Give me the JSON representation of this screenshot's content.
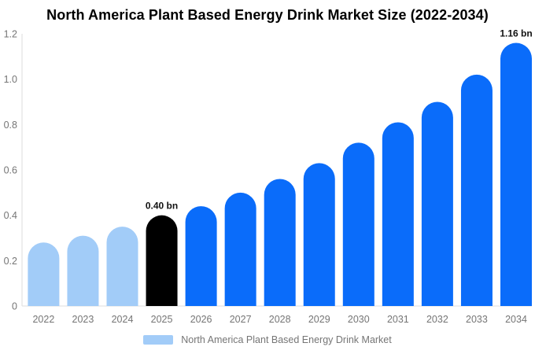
{
  "title": "North America Plant Based Energy Drink Market Size (2022-2034)",
  "legend": {
    "label": "North America Plant Based Energy Drink Market",
    "swatch_color": "#a2ccf8"
  },
  "colors": {
    "historical_bar": "#a2ccf8",
    "highlight_bar": "#000000",
    "forecast_bar": "#0a6cfa",
    "axis_line": "#dedede",
    "tick_text": "#757575",
    "annotation_text": "#111111",
    "background": "#ffffff"
  },
  "chart_data": {
    "type": "bar",
    "title": "North America Plant Based Energy Drink Market Size (2022-2034)",
    "categories": [
      "2022",
      "2023",
      "2024",
      "2025",
      "2026",
      "2027",
      "2028",
      "2029",
      "2030",
      "2031",
      "2032",
      "2033",
      "2034"
    ],
    "values": [
      0.28,
      0.31,
      0.35,
      0.4,
      0.44,
      0.5,
      0.56,
      0.63,
      0.72,
      0.81,
      0.9,
      1.02,
      1.16
    ],
    "unit": "bn",
    "bar_colors": [
      "#a2ccf8",
      "#a2ccf8",
      "#a2ccf8",
      "#000000",
      "#0a6cfa",
      "#0a6cfa",
      "#0a6cfa",
      "#0a6cfa",
      "#0a6cfa",
      "#0a6cfa",
      "#0a6cfa",
      "#0a6cfa",
      "#0a6cfa"
    ],
    "annotations": [
      {
        "index": 3,
        "label": "0.40 bn"
      },
      {
        "index": 12,
        "label": "1.16 bn"
      }
    ],
    "xlabel": "",
    "ylabel": "",
    "ylim": [
      0,
      1.2
    ],
    "yticks": [
      0,
      0.2,
      0.4,
      0.6,
      0.8,
      1.0,
      1.2
    ],
    "ytick_labels": [
      "0",
      "0.2",
      "0.4",
      "0.6",
      "0.8",
      "1.0",
      "1.2"
    ],
    "grid": false,
    "legend_position": "bottom"
  }
}
